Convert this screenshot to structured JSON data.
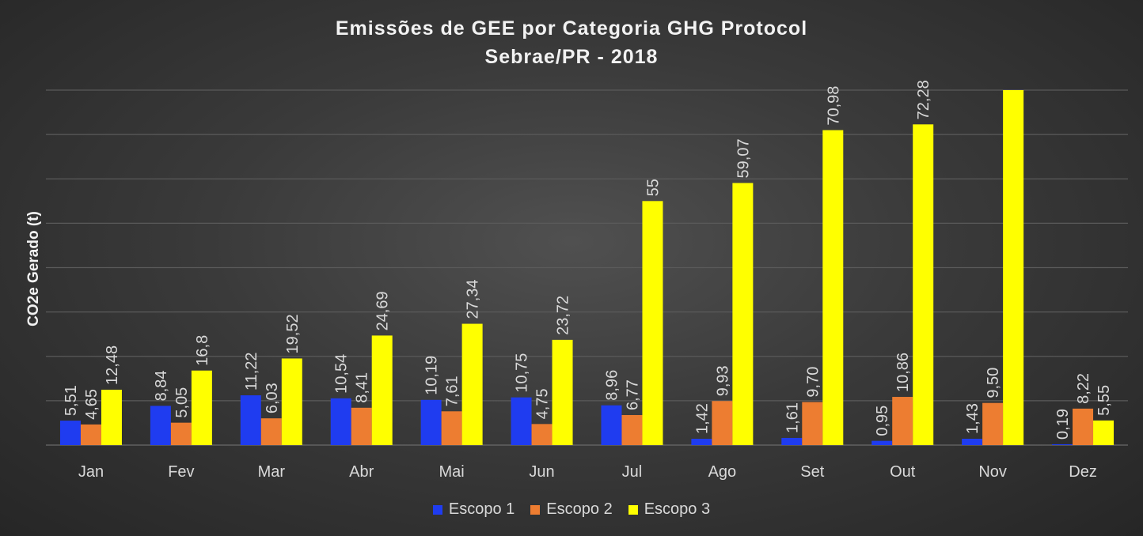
{
  "chart_data": {
    "type": "bar",
    "title": [
      "Emissões de GEE por Categoria GHG Protocol",
      "Sebrae/PR - 2018"
    ],
    "ylabel": "CO2e Gerado (t)",
    "xlabel": "",
    "ylim": [
      0,
      80
    ],
    "grid": true,
    "legend_position": "bottom",
    "categories": [
      "Jan",
      "Fev",
      "Mar",
      "Abr",
      "Mai",
      "Jun",
      "Jul",
      "Ago",
      "Set",
      "Out",
      "Nov",
      "Dez"
    ],
    "series": [
      {
        "name": "Escopo 1",
        "color": "#1f3cf0",
        "values": [
          5.51,
          8.84,
          11.22,
          10.54,
          10.19,
          10.75,
          8.96,
          1.42,
          1.61,
          0.95,
          1.43,
          0.19
        ],
        "labels": [
          "5,51",
          "8,84",
          "11,22",
          "10,54",
          "10,19",
          "10,75",
          "8,96",
          "1,42",
          "1,61",
          "0,95",
          "1,43",
          "0,19"
        ]
      },
      {
        "name": "Escopo 2",
        "color": "#ed7d31",
        "values": [
          4.65,
          5.05,
          6.03,
          8.41,
          7.61,
          4.75,
          6.77,
          9.93,
          9.7,
          10.86,
          9.5,
          8.22
        ],
        "labels": [
          "4,65",
          "5,05",
          "6,03",
          "8,41",
          "7,61",
          "4,75",
          "6,77",
          "9,93",
          "9,70",
          "10,86",
          "9,50",
          "8,22"
        ]
      },
      {
        "name": "Escopo 3",
        "color": "#ffff00",
        "values": [
          12.48,
          16.8,
          19.52,
          24.69,
          27.34,
          23.72,
          55,
          59.07,
          70.98,
          72.28,
          80,
          5.55
        ],
        "labels": [
          "12,48",
          "16,8",
          "19,52",
          "24,69",
          "27,34",
          "23,72",
          "55",
          "59,07",
          "70,98",
          "72,28",
          "",
          "5,55"
        ]
      }
    ]
  }
}
